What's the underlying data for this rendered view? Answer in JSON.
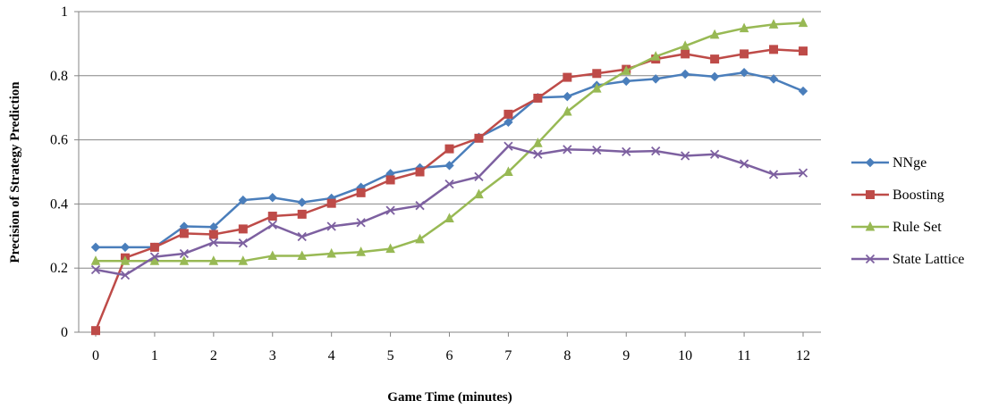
{
  "chart_data": {
    "type": "line",
    "title": "",
    "xlabel": "Game Time (minutes)",
    "ylabel": "Precision of Strategy Prediction",
    "x": [
      0,
      0.5,
      1,
      1.5,
      2,
      2.5,
      3,
      3.5,
      4,
      4.5,
      5,
      5.5,
      6,
      6.5,
      7,
      7.5,
      8,
      8.5,
      9,
      9.5,
      10,
      10.5,
      11,
      11.5,
      12
    ],
    "x_ticks": [
      "0",
      "1",
      "2",
      "3",
      "4",
      "5",
      "6",
      "7",
      "8",
      "9",
      "10",
      "11",
      "12"
    ],
    "y_ticks": [
      "0",
      "0.2",
      "0.4",
      "0.6",
      "0.8",
      "1"
    ],
    "xlim": [
      0,
      12
    ],
    "ylim": [
      0,
      1
    ],
    "grid": "horizontal",
    "legend_position": "right",
    "series": [
      {
        "name": "NNge",
        "color": "#4a7ebb",
        "marker": "diamond",
        "values": [
          0.265,
          0.265,
          0.265,
          0.33,
          0.328,
          0.412,
          0.42,
          0.405,
          0.418,
          0.452,
          0.495,
          0.513,
          0.52,
          0.608,
          0.655,
          0.732,
          0.735,
          0.77,
          0.783,
          0.79,
          0.805,
          0.797,
          0.81,
          0.79,
          0.752
        ]
      },
      {
        "name": "Boosting",
        "color": "#be4b48",
        "marker": "square",
        "values": [
          0.005,
          0.232,
          0.265,
          0.308,
          0.305,
          0.322,
          0.362,
          0.368,
          0.402,
          0.435,
          0.475,
          0.5,
          0.572,
          0.605,
          0.68,
          0.73,
          0.795,
          0.807,
          0.82,
          0.852,
          0.868,
          0.852,
          0.868,
          0.882,
          0.877
        ]
      },
      {
        "name": "Rule Set",
        "color": "#98b954",
        "marker": "triangle",
        "values": [
          0.222,
          0.222,
          0.222,
          0.222,
          0.222,
          0.222,
          0.238,
          0.238,
          0.245,
          0.25,
          0.26,
          0.29,
          0.355,
          0.43,
          0.5,
          0.59,
          0.688,
          0.76,
          0.815,
          0.86,
          0.893,
          0.928,
          0.948,
          0.96,
          0.965
        ]
      },
      {
        "name": "State Lattice",
        "color": "#7d60a0",
        "marker": "x",
        "values": [
          0.195,
          0.178,
          0.235,
          0.245,
          0.28,
          0.278,
          0.335,
          0.298,
          0.33,
          0.342,
          0.38,
          0.395,
          0.462,
          0.485,
          0.58,
          0.555,
          0.57,
          0.568,
          0.563,
          0.565,
          0.55,
          0.555,
          0.525,
          0.492,
          0.497
        ]
      }
    ]
  }
}
